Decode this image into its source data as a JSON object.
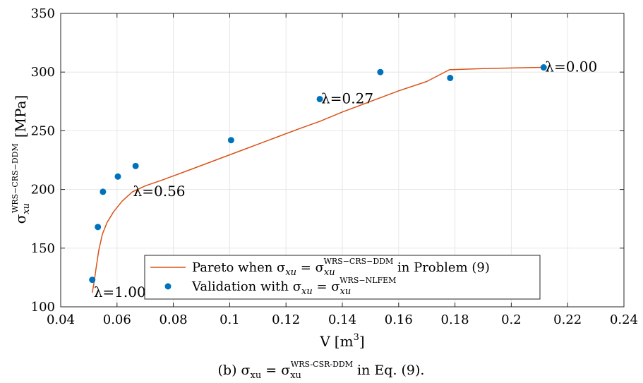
{
  "chart_data": {
    "type": "line",
    "xlim": [
      0.04,
      0.24
    ],
    "ylim": [
      100,
      350
    ],
    "xticks": [
      0.04,
      0.06,
      0.08,
      0.1,
      0.12,
      0.14,
      0.16,
      0.18,
      0.2,
      0.22,
      0.24
    ],
    "yticks": [
      100,
      150,
      200,
      250,
      300,
      350
    ],
    "xtick_labels": [
      "0.04",
      "0.06",
      "0.08",
      "0.1",
      "0.12",
      "0.14",
      "0.16",
      "0.18",
      "0.2",
      "0.22",
      "0.24"
    ],
    "ytick_labels": [
      "100",
      "150",
      "200",
      "250",
      "300",
      "350"
    ],
    "xlabel_main": "V",
    "xlabel_unit": "[m",
    "xlabel_unit_exp": "3",
    "xlabel_close": "]",
    "ylabel_sigma": "σ",
    "ylabel_sub": "xu",
    "ylabel_sup": "WRS−CRS−DDM",
    "ylabel_unit": "[MPa]",
    "grid": true,
    "legend_placement": "bottom-center",
    "series": [
      {
        "name": "Pareto when σxu = σxu WRS−CRS−DDM in Problem (9)",
        "kind": "line",
        "color": "#d95319",
        "x": [
          0.0512,
          0.0518,
          0.0525,
          0.0535,
          0.0548,
          0.0565,
          0.0588,
          0.0618,
          0.0655,
          0.07,
          0.076,
          0.085,
          0.095,
          0.105,
          0.115,
          0.125,
          0.132,
          0.14,
          0.15,
          0.16,
          0.17,
          0.178,
          0.19,
          0.2,
          0.211
        ],
        "y": [
          112,
          120,
          132,
          148,
          162,
          172,
          181,
          190,
          198,
          203,
          208,
          216,
          225,
          234,
          243,
          252,
          258,
          266,
          275,
          284,
          292,
          302,
          303,
          303.5,
          304
        ]
      },
      {
        "name": "Validation with σxu = σxu WRS−NLFEM",
        "kind": "scatter",
        "color": "#0072bd",
        "x": [
          0.0512,
          0.0532,
          0.055,
          0.0603,
          0.0666,
          0.1005,
          0.132,
          0.1535,
          0.1783,
          0.2115
        ],
        "y": [
          123,
          168,
          198,
          211,
          220,
          242,
          277,
          300,
          295,
          304
        ]
      }
    ],
    "annotations": [
      {
        "text": "λ=1.00",
        "x": 0.0512,
        "y": 112
      },
      {
        "text": "λ=0.56",
        "x": 0.0652,
        "y": 198
      },
      {
        "text": "λ=0.27",
        "x": 0.132,
        "y": 277
      },
      {
        "text": "λ=0.00",
        "x": 0.2115,
        "y": 304
      }
    ],
    "legend": {
      "line": {
        "pre": "Pareto when σ",
        "sub1": "xu",
        "eq": " = σ",
        "sub2": "xu",
        "sup2": "WRS−CRS−DDM",
        "post": " in Problem (9)"
      },
      "scatter": {
        "pre": "Validation with σ",
        "sub1": "xu",
        "eq": " = σ",
        "sub2": "xu",
        "sup2": "WRS−NLFEM"
      }
    },
    "caption": {
      "pre": "(b) σ",
      "sub1": "xu",
      "eq": " = σ",
      "sub2": "xu",
      "sup2": "WRS-CSR-DDM",
      "post": " in Eq. (9)."
    }
  }
}
